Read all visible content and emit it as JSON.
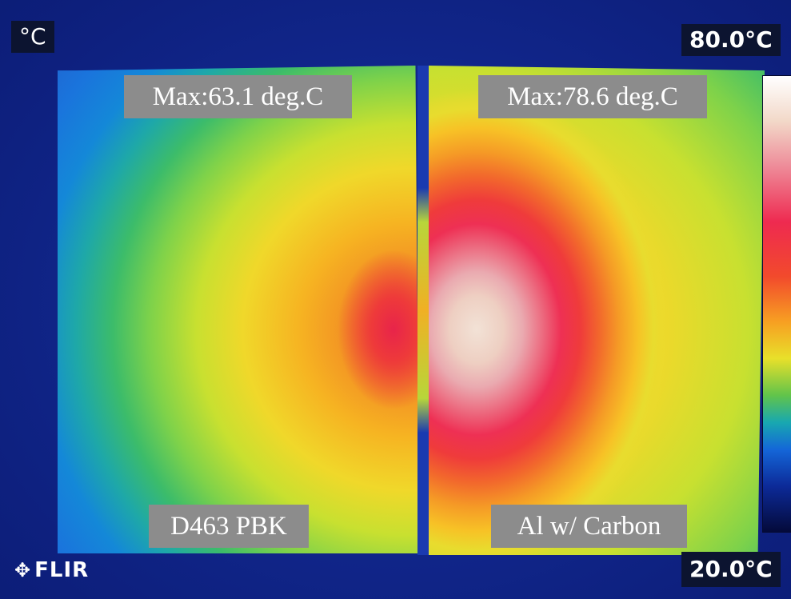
{
  "hud": {
    "unit": "°C",
    "max_temp": "80.0°C",
    "min_temp": "20.0°C"
  },
  "labels": {
    "max_left": "Max:63.1 deg.C",
    "max_right": "Max:78.6 deg.C",
    "name_left": "D463 PBK",
    "name_right": "Al w/ Carbon"
  },
  "logo": {
    "icon": "flir-logo-icon",
    "text": "FLIR"
  }
}
